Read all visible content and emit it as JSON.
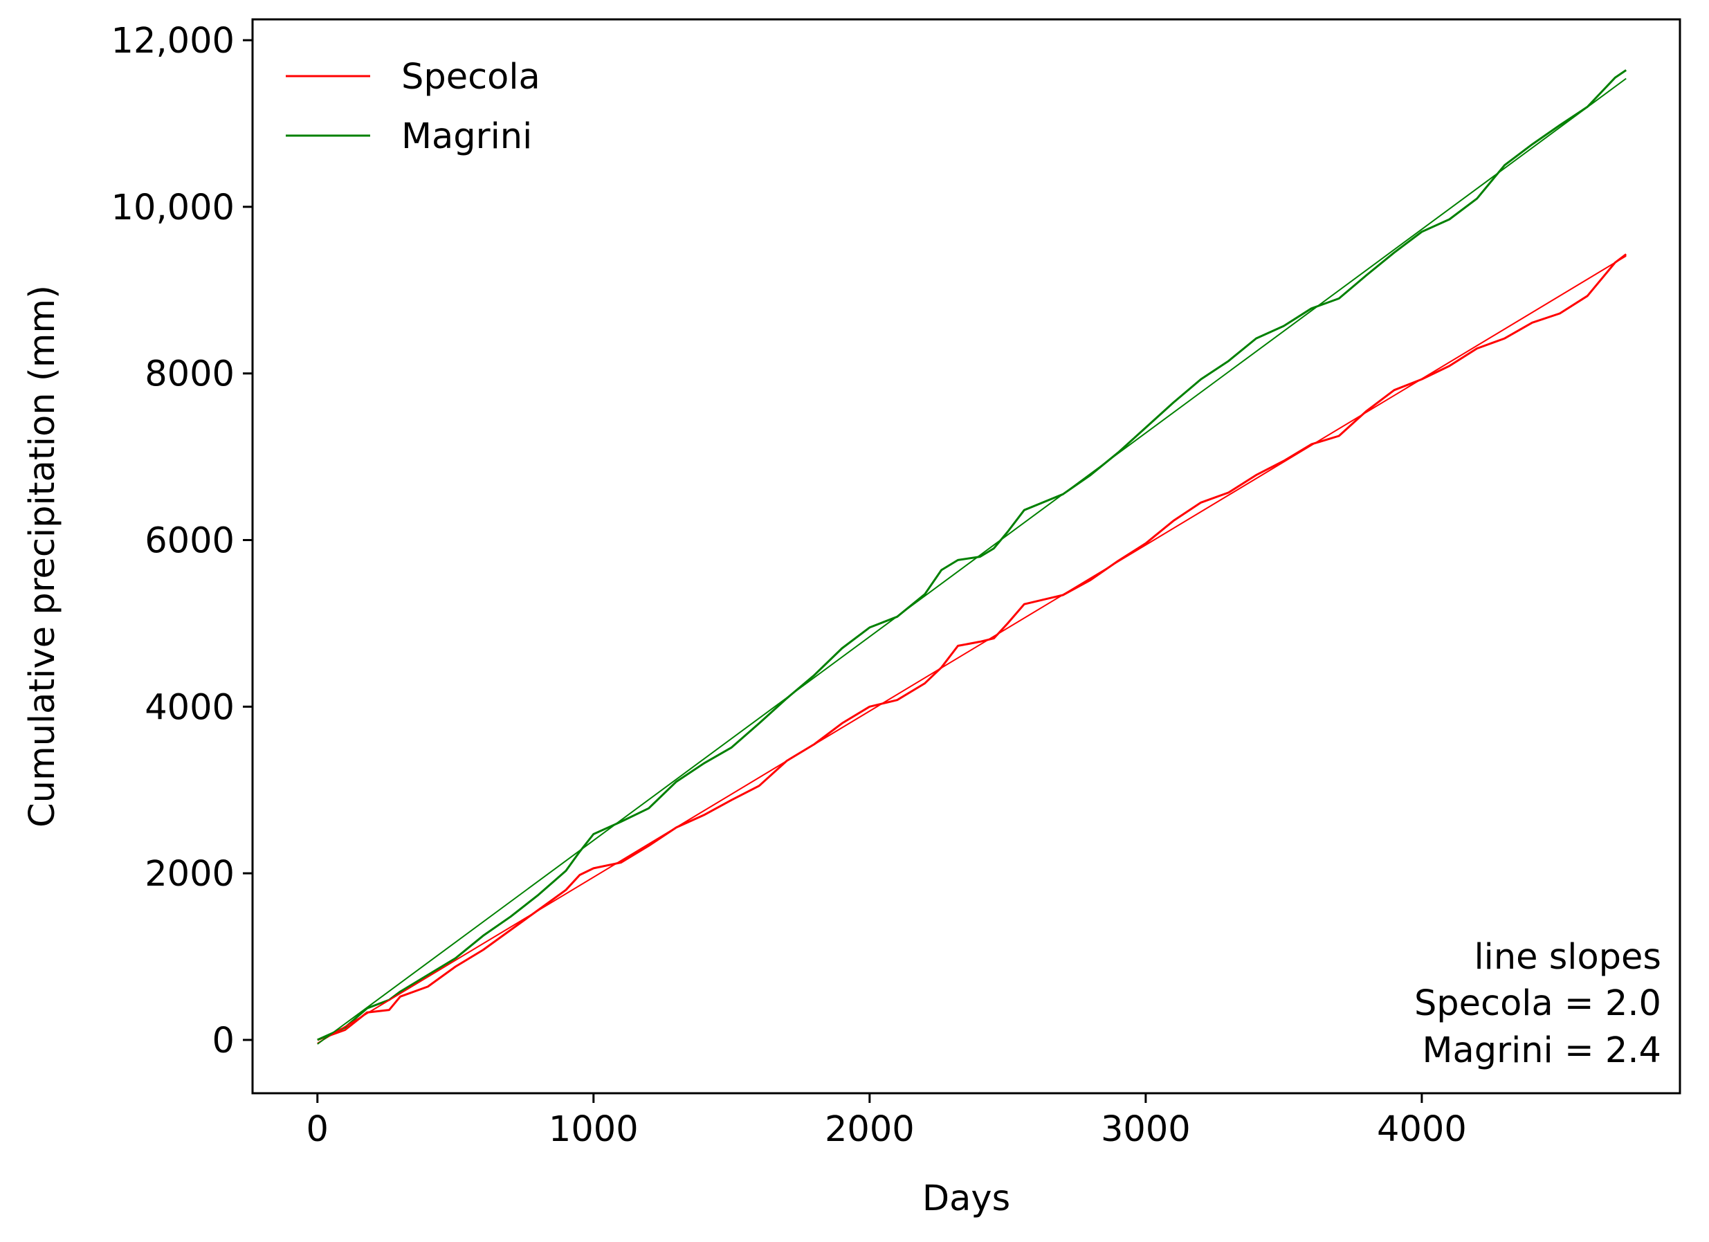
{
  "chart_data": {
    "type": "line",
    "title": "",
    "xlabel": "Days",
    "ylabel": "Cumulative precipitation (mm)",
    "xlim": [
      -235,
      4935
    ],
    "ylim": [
      -640,
      12250
    ],
    "x_ticks": [
      0,
      1000,
      2000,
      3000,
      4000
    ],
    "x_tick_labels": [
      "0",
      "1000",
      "2000",
      "3000",
      "4000"
    ],
    "y_ticks": [
      0,
      2000,
      4000,
      6000,
      8000,
      10000,
      12000
    ],
    "y_tick_labels": [
      "0",
      "2000",
      "4000",
      "6000",
      "8000",
      "10,000",
      "12,000"
    ],
    "grid": false,
    "legend": {
      "placement": "top-left",
      "entries": [
        "Specola",
        "Magrini"
      ]
    },
    "series": [
      {
        "name": "Specola",
        "color": "#ff0000",
        "kind": "cumulative",
        "points": [
          [
            0,
            0
          ],
          [
            100,
            120
          ],
          [
            180,
            330
          ],
          [
            260,
            360
          ],
          [
            300,
            520
          ],
          [
            400,
            640
          ],
          [
            500,
            880
          ],
          [
            600,
            1080
          ],
          [
            700,
            1320
          ],
          [
            800,
            1560
          ],
          [
            900,
            1800
          ],
          [
            950,
            1980
          ],
          [
            1000,
            2060
          ],
          [
            1100,
            2130
          ],
          [
            1200,
            2330
          ],
          [
            1300,
            2550
          ],
          [
            1400,
            2700
          ],
          [
            1500,
            2880
          ],
          [
            1600,
            3050
          ],
          [
            1700,
            3350
          ],
          [
            1800,
            3550
          ],
          [
            1900,
            3800
          ],
          [
            2000,
            4000
          ],
          [
            2100,
            4080
          ],
          [
            2200,
            4280
          ],
          [
            2260,
            4470
          ],
          [
            2320,
            4730
          ],
          [
            2400,
            4780
          ],
          [
            2450,
            4820
          ],
          [
            2500,
            5000
          ],
          [
            2560,
            5230
          ],
          [
            2700,
            5340
          ],
          [
            2800,
            5520
          ],
          [
            2900,
            5750
          ],
          [
            3000,
            5960
          ],
          [
            3100,
            6230
          ],
          [
            3200,
            6450
          ],
          [
            3300,
            6570
          ],
          [
            3400,
            6780
          ],
          [
            3500,
            6950
          ],
          [
            3600,
            7150
          ],
          [
            3700,
            7250
          ],
          [
            3800,
            7550
          ],
          [
            3900,
            7800
          ],
          [
            4000,
            7930
          ],
          [
            4100,
            8090
          ],
          [
            4200,
            8300
          ],
          [
            4300,
            8420
          ],
          [
            4400,
            8610
          ],
          [
            4500,
            8720
          ],
          [
            4600,
            8930
          ],
          [
            4700,
            9330
          ],
          [
            4740,
            9430
          ]
        ]
      },
      {
        "name": "Magrini",
        "color": "#008000",
        "kind": "cumulative",
        "points": [
          [
            0,
            0
          ],
          [
            100,
            150
          ],
          [
            180,
            380
          ],
          [
            260,
            480
          ],
          [
            300,
            580
          ],
          [
            400,
            780
          ],
          [
            500,
            980
          ],
          [
            600,
            1250
          ],
          [
            700,
            1480
          ],
          [
            800,
            1740
          ],
          [
            900,
            2030
          ],
          [
            950,
            2260
          ],
          [
            1000,
            2470
          ],
          [
            1100,
            2620
          ],
          [
            1200,
            2780
          ],
          [
            1300,
            3100
          ],
          [
            1400,
            3320
          ],
          [
            1500,
            3510
          ],
          [
            1600,
            3800
          ],
          [
            1700,
            4100
          ],
          [
            1800,
            4380
          ],
          [
            1900,
            4700
          ],
          [
            2000,
            4950
          ],
          [
            2100,
            5080
          ],
          [
            2200,
            5350
          ],
          [
            2260,
            5640
          ],
          [
            2320,
            5760
          ],
          [
            2400,
            5800
          ],
          [
            2450,
            5900
          ],
          [
            2500,
            6100
          ],
          [
            2560,
            6360
          ],
          [
            2700,
            6550
          ],
          [
            2800,
            6780
          ],
          [
            2900,
            7050
          ],
          [
            3000,
            7350
          ],
          [
            3100,
            7650
          ],
          [
            3200,
            7930
          ],
          [
            3300,
            8150
          ],
          [
            3400,
            8420
          ],
          [
            3500,
            8570
          ],
          [
            3600,
            8780
          ],
          [
            3700,
            8900
          ],
          [
            3800,
            9180
          ],
          [
            3900,
            9450
          ],
          [
            4000,
            9700
          ],
          [
            4100,
            9850
          ],
          [
            4200,
            10100
          ],
          [
            4300,
            10500
          ],
          [
            4400,
            10750
          ],
          [
            4500,
            10980
          ],
          [
            4600,
            11200
          ],
          [
            4700,
            11550
          ],
          [
            4740,
            11640
          ]
        ]
      },
      {
        "name": "",
        "color": "#ff0000",
        "kind": "fit",
        "slope": 2.0,
        "points": [
          [
            0,
            -40
          ],
          [
            4740,
            9410
          ]
        ]
      },
      {
        "name": "",
        "color": "#008000",
        "kind": "fit",
        "slope": 2.4,
        "points": [
          [
            0,
            -50
          ],
          [
            4740,
            11540
          ]
        ]
      }
    ],
    "annotations": {
      "title": "line slopes",
      "lines": [
        "Specola = 2.0",
        "Magrini = 2.4"
      ],
      "placement": "bottom-right"
    }
  }
}
